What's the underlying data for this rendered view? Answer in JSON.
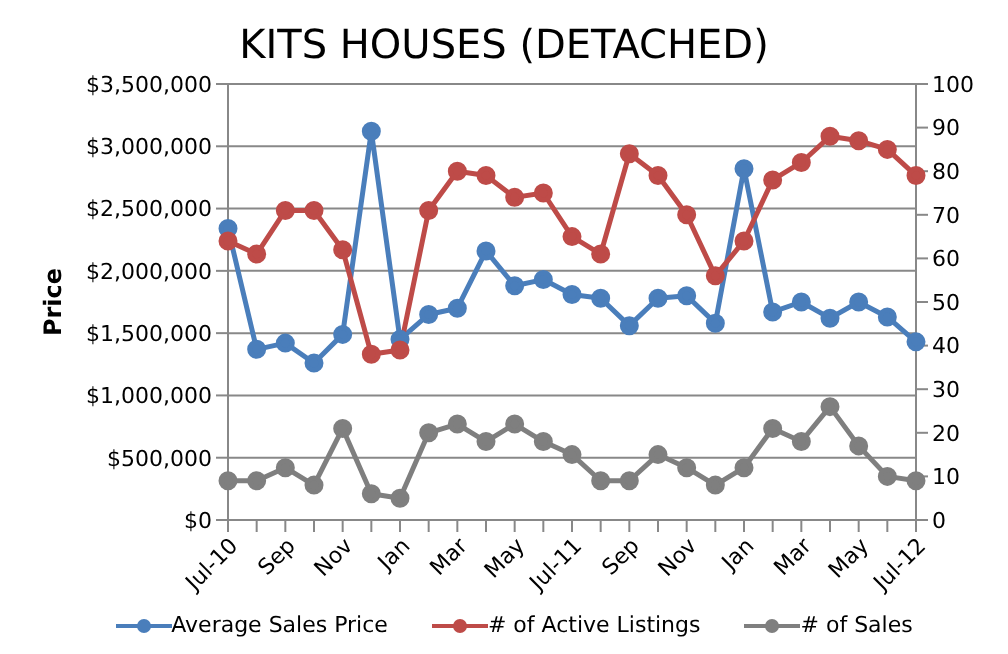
{
  "chart_data": {
    "type": "line",
    "title": "KITS HOUSES (DETACHED)",
    "ylabel": "Price",
    "categories": [
      "Jul-10",
      null,
      "Sep",
      null,
      "Nov",
      null,
      "Jan",
      null,
      "Mar",
      null,
      "May",
      null,
      "Jul-11",
      null,
      "Sep",
      null,
      "Nov",
      null,
      "Jan",
      null,
      "Mar",
      null,
      "May",
      null,
      "Jul-12"
    ],
    "series": [
      {
        "name": "Average Sales Price",
        "color": "#4a7ebb",
        "values": [
          2340000,
          1370000,
          1420000,
          1260000,
          1490000,
          3120000,
          1450000,
          1650000,
          1700000,
          2160000,
          1880000,
          1930000,
          1810000,
          1780000,
          1560000,
          1780000,
          1800000,
          1580000,
          2820000,
          1670000,
          1750000,
          1620000,
          1750000,
          1630000,
          1430000
        ]
      },
      {
        "name": "# of Active Listings",
        "color": "#be4b48",
        "axis": "y2",
        "values": [
          64,
          61,
          71,
          71,
          62,
          38,
          39,
          71,
          80,
          79,
          74,
          75,
          65,
          61,
          84,
          79,
          70,
          56,
          64,
          78,
          82,
          88,
          87,
          85,
          79
        ]
      },
      {
        "name": "# of Sales",
        "color": "#7f7f7f",
        "axis": "y2",
        "values": [
          9,
          9,
          12,
          8,
          21,
          6,
          5,
          20,
          22,
          18,
          22,
          18,
          15,
          9,
          9,
          15,
          12,
          8,
          12,
          21,
          18,
          26,
          17,
          10,
          9
        ]
      }
    ],
    "ylim": [
      0,
      3500000
    ],
    "yticks": [
      {
        "value": 0,
        "label": "$0"
      },
      {
        "value": 500000,
        "label": "$500,000"
      },
      {
        "value": 1000000,
        "label": "$1,000,000"
      },
      {
        "value": 1500000,
        "label": "$1,500,000"
      },
      {
        "value": 2000000,
        "label": "$2,000,000"
      },
      {
        "value": 2500000,
        "label": "$2,500,000"
      },
      {
        "value": 3000000,
        "label": "$3,000,000"
      },
      {
        "value": 3500000,
        "label": "$3,500,000"
      }
    ],
    "y2lim": [
      0,
      100
    ],
    "y2ticks": [
      0,
      10,
      20,
      30,
      40,
      50,
      60,
      70,
      80,
      90,
      100
    ],
    "grid": "y",
    "legend": "bottom",
    "marker": "circle",
    "line_style": "solid"
  }
}
